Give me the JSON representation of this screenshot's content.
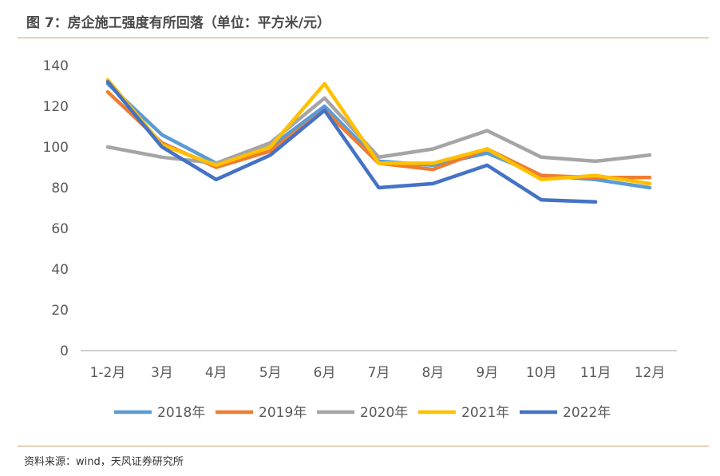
{
  "header": {
    "title": "图 7：房企施工强度有所回落（单位：平方米/元）"
  },
  "footer": {
    "source": "资料来源：wind，天风证券研究所"
  },
  "colors": {
    "rule": "#c9a063",
    "axis": "#bfbfbf",
    "tick": "#595959"
  },
  "chart_data": {
    "type": "line",
    "title": "",
    "xlabel": "",
    "ylabel": "",
    "ylim": [
      0,
      140
    ],
    "yticks": [
      0,
      20,
      40,
      60,
      80,
      100,
      120,
      140
    ],
    "grid": false,
    "legend": "bottom",
    "categories": [
      "1-2月",
      "3月",
      "4月",
      "5月",
      "6月",
      "7月",
      "8月",
      "9月",
      "10月",
      "11月",
      "12月"
    ],
    "series": [
      {
        "name": "2018年",
        "color": "#5b9bd5",
        "values": [
          131,
          106,
          92,
          100,
          120,
          93,
          91,
          97,
          86,
          84,
          80
        ]
      },
      {
        "name": "2019年",
        "color": "#ed7d31",
        "values": [
          127,
          102,
          90,
          98,
          118,
          92,
          89,
          99,
          86,
          85,
          85
        ]
      },
      {
        "name": "2020年",
        "color": "#a5a5a5",
        "values": [
          100,
          95,
          92,
          102,
          124,
          95,
          99,
          108,
          95,
          93,
          96
        ]
      },
      {
        "name": "2021年",
        "color": "#ffc000",
        "values": [
          133,
          101,
          91,
          100,
          131,
          92,
          92,
          99,
          84,
          86,
          82
        ]
      },
      {
        "name": "2022年",
        "color": "#4472c4",
        "values": [
          132,
          100,
          84,
          96,
          118,
          80,
          82,
          91,
          74,
          73,
          null
        ]
      }
    ]
  }
}
